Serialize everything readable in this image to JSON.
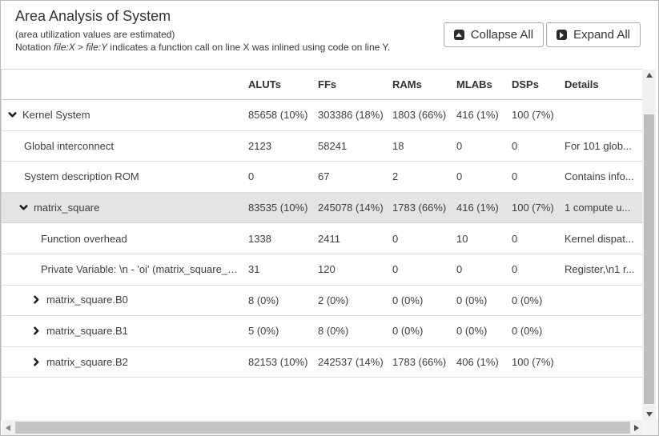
{
  "header": {
    "title": "Area Analysis of System",
    "subtitle": "(area utilization values are estimated)",
    "notation": {
      "prefix": "Notation ",
      "file_x": "file:X",
      "sep": " > ",
      "file_y": "file:Y",
      "suffix": " indicates a function call on line X was inlined using code on line Y."
    },
    "buttons": [
      {
        "label": "Collapse All",
        "icon": "collapse-all-icon"
      },
      {
        "label": "Expand All",
        "icon": "expand-all-icon"
      }
    ]
  },
  "table": {
    "columns": [
      "ALUTs",
      "FFs",
      "RAMs",
      "MLABs",
      "DSPs",
      "Details"
    ],
    "rows": [
      {
        "name": "Kernel System",
        "level": 0,
        "chevron": "down",
        "highlighted": false,
        "values": [
          "85658 (10%)",
          "303386 (18%)",
          "1803 (66%)",
          "416 (1%)",
          "100 (7%)"
        ],
        "details": ""
      },
      {
        "name": "Global interconnect",
        "level": 1,
        "chevron": null,
        "highlighted": false,
        "values": [
          "2123",
          "58241",
          "18",
          "0",
          "0"
        ],
        "details": "For 101 glob..."
      },
      {
        "name": "System description ROM",
        "level": 1,
        "chevron": null,
        "highlighted": false,
        "values": [
          "0",
          "67",
          "2",
          "0",
          "0"
        ],
        "details": "Contains info..."
      },
      {
        "name": "matrix_square",
        "level": 1,
        "chevron": "down",
        "highlighted": true,
        "values": [
          "83535 (10%)",
          "245078 (14%)",
          "1783 (66%)",
          "416 (1%)",
          "100 (7%)"
        ],
        "details": "1 compute u..."
      },
      {
        "name": "Function overhead",
        "level": 2,
        "chevron": null,
        "highlighted": false,
        "values": [
          "1338",
          "2411",
          "0",
          "10",
          "0"
        ],
        "details": "Kernel dispat..."
      },
      {
        "name": "Private Variable: \\n - 'oi' (matrix_square_orig.cl:...",
        "level": 2,
        "chevron": null,
        "highlighted": false,
        "values": [
          "31",
          "120",
          "0",
          "0",
          "0"
        ],
        "details": "Register,\\n1 r..."
      },
      {
        "name": "matrix_square.B0",
        "level": 2,
        "chevron": "right",
        "highlighted": false,
        "values": [
          "8 (0%)",
          "2 (0%)",
          "0 (0%)",
          "0 (0%)",
          "0 (0%)"
        ],
        "details": ""
      },
      {
        "name": "matrix_square.B1",
        "level": 2,
        "chevron": "right",
        "highlighted": false,
        "values": [
          "5 (0%)",
          "8 (0%)",
          "0 (0%)",
          "0 (0%)",
          "0 (0%)"
        ],
        "details": ""
      },
      {
        "name": "matrix_square.B2",
        "level": 2,
        "chevron": "right",
        "highlighted": false,
        "values": [
          "82153 (10%)",
          "242537 (14%)",
          "1783 (66%)",
          "406 (1%)",
          "100 (7%)"
        ],
        "details": ""
      }
    ]
  },
  "colors": {
    "highlight_row": "#e4e4e4",
    "header_text": "#2d3238",
    "body_text": "#3d3d3d",
    "row_border": "#dedede",
    "scrollbar_thumb": "#c1c1c1",
    "scrollbar_track": "#f1f1f1",
    "button_icon_bg": "#2b2b2b"
  }
}
